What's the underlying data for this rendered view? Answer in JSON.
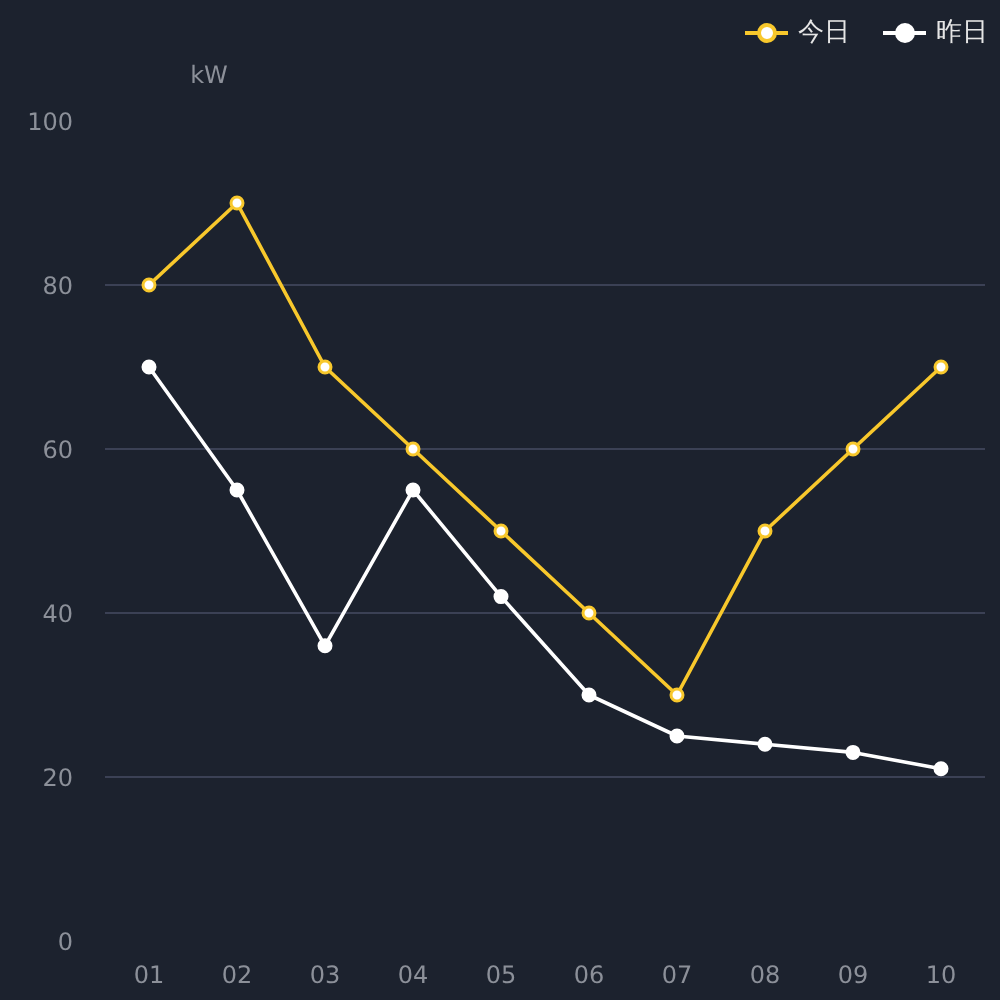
{
  "chart_data": {
    "type": "line",
    "ylabel": "kW",
    "categories": [
      "01",
      "02",
      "03",
      "04",
      "05",
      "06",
      "07",
      "08",
      "09",
      "10"
    ],
    "series": [
      {
        "name": "今日",
        "color": "#f8c82c",
        "values": [
          80,
          90,
          70,
          60,
          50,
          40,
          30,
          50,
          60,
          70
        ]
      },
      {
        "name": "昨日",
        "color": "#ffffff",
        "values": [
          70,
          55,
          36,
          55,
          42,
          30,
          25,
          24,
          23,
          21
        ]
      }
    ],
    "ylim": [
      0,
      100
    ],
    "yticks": [
      0,
      20,
      40,
      60,
      80,
      100
    ],
    "grid": "y",
    "legend": "top right",
    "marker": "circle"
  }
}
